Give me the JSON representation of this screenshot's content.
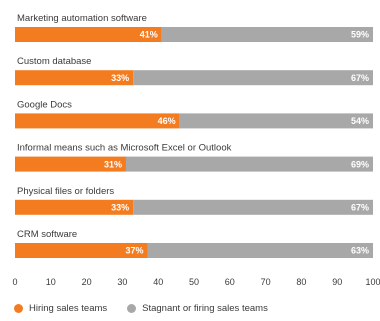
{
  "chart_data": {
    "type": "bar",
    "orientation": "horizontal",
    "stacked": true,
    "categories": [
      "Marketing automation software",
      "Custom database",
      "Google Docs",
      "Informal means such as Microsoft Excel or Outlook",
      "Physical files or folders",
      "CRM software"
    ],
    "series": [
      {
        "name": "Hiring sales teams",
        "values": [
          41,
          33,
          46,
          31,
          33,
          37
        ],
        "labels": [
          "41%",
          "33%",
          "46%",
          "31%",
          "33%",
          "37%"
        ],
        "color": "#f47c20"
      },
      {
        "name": "Stagnant or firing sales teams",
        "values": [
          59,
          67,
          54,
          69,
          67,
          63
        ],
        "labels": [
          "59%",
          "67%",
          "54%",
          "69%",
          "67%",
          "63%"
        ],
        "color": "#a8a8a8"
      }
    ],
    "xticks": [
      "0",
      "10",
      "20",
      "30",
      "40",
      "50",
      "60",
      "70",
      "80",
      "90",
      "100"
    ],
    "xlim": [
      0,
      100
    ],
    "legend_position": "bottom-left",
    "grid": false
  }
}
